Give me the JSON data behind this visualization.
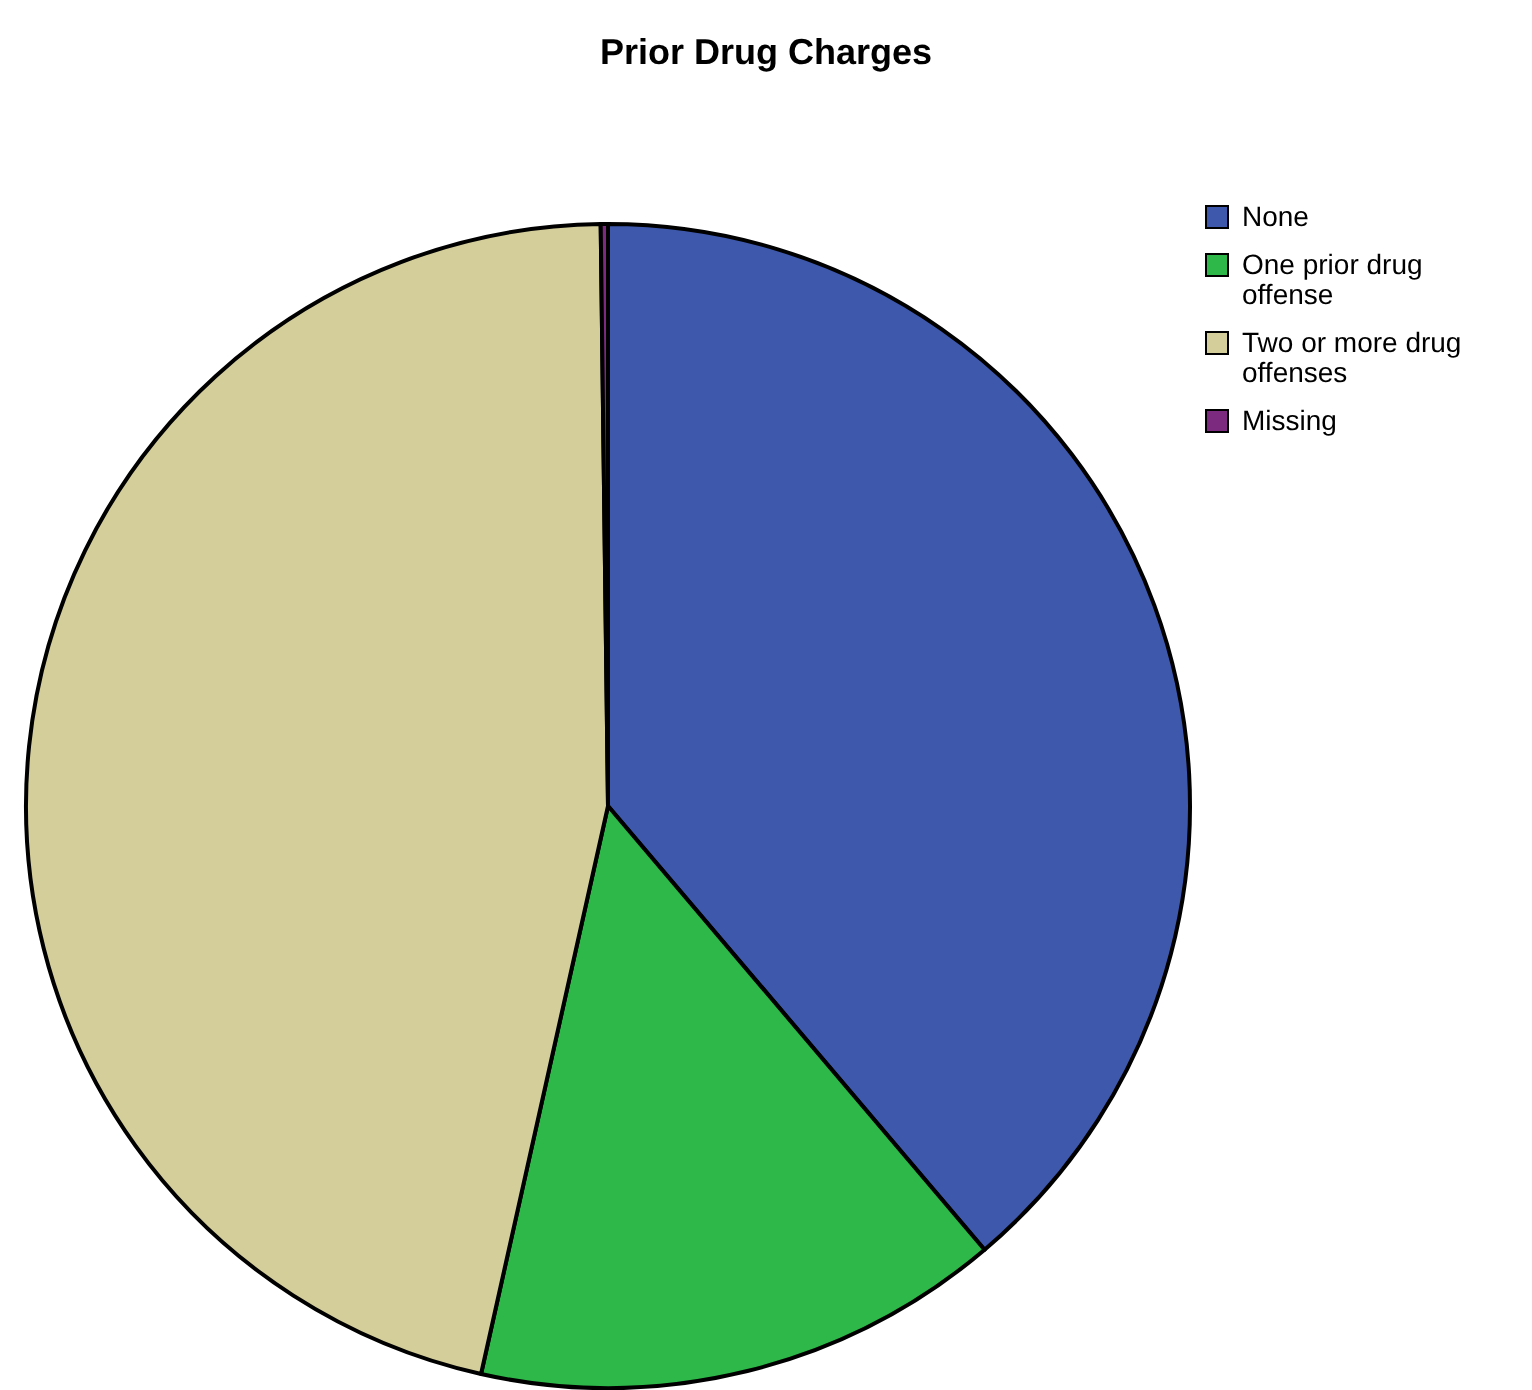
{
  "chart_data": {
    "type": "pie",
    "title": "Prior Drug Charges",
    "categories": [
      "None",
      "One prior drug offense",
      "Two or more drug offenses",
      "Missing"
    ],
    "values": [
      38.8,
      14.7,
      46.3,
      0.2
    ],
    "colors": [
      "#3e58ac",
      "#2eb84a",
      "#d4ce9a",
      "#7b2a7f"
    ],
    "legend": "top right"
  }
}
